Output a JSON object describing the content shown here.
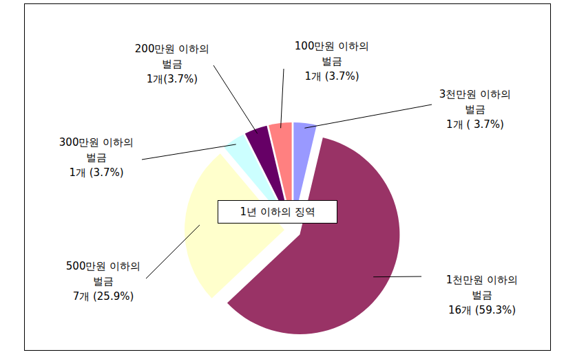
{
  "chart_data": {
    "type": "pie",
    "annotation": "1년 이하의 징역",
    "categories": [
      "3천만원 이하의 벌금",
      "1천만원 이하의 벌금",
      "500만원 이하의 벌금",
      "300만원 이하의 벌금",
      "200만원 이하의 벌금",
      "100만원 이하의 벌금"
    ],
    "values": [
      1,
      16,
      7,
      1,
      1,
      1
    ],
    "value_labels": [
      "1개 ( 3.7%)",
      "16개 (59.3%)",
      "7개 (25.9%)",
      "1개 (3.7%)",
      "1개(3.7%)",
      "1개 (3.7%)"
    ],
    "colors": [
      "#9999ff",
      "#993366",
      "#ffffcc",
      "#ccffff",
      "#660066",
      "#ff8080"
    ]
  }
}
